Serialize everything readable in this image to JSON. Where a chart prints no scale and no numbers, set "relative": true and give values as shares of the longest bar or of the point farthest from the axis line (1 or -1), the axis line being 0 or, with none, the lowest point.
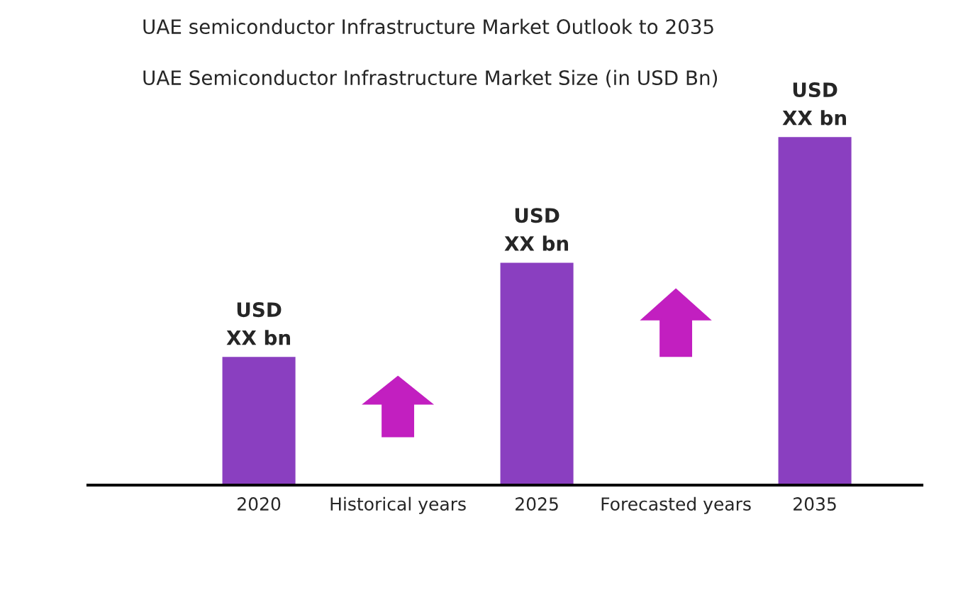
{
  "chart_data": {
    "type": "bar",
    "title": "UAE semiconductor Infrastructure Market Outlook to 2035",
    "subtitle": "UAE Semiconductor Infrastructure Market Size (in USD Bn)",
    "categories": [
      "2020",
      "Historical years",
      "2025",
      "Forecasted years",
      "2035"
    ],
    "relative": true,
    "series": [
      {
        "color": "#8a3fc0",
        "values": [
          0.37,
          null,
          0.64,
          null,
          1
        ]
      }
    ],
    "value_labels": [
      "USD\nXX bn",
      null,
      "USD\nXX bn",
      null,
      "USD\nXX bn"
    ],
    "grid": false,
    "legend": false
  }
}
